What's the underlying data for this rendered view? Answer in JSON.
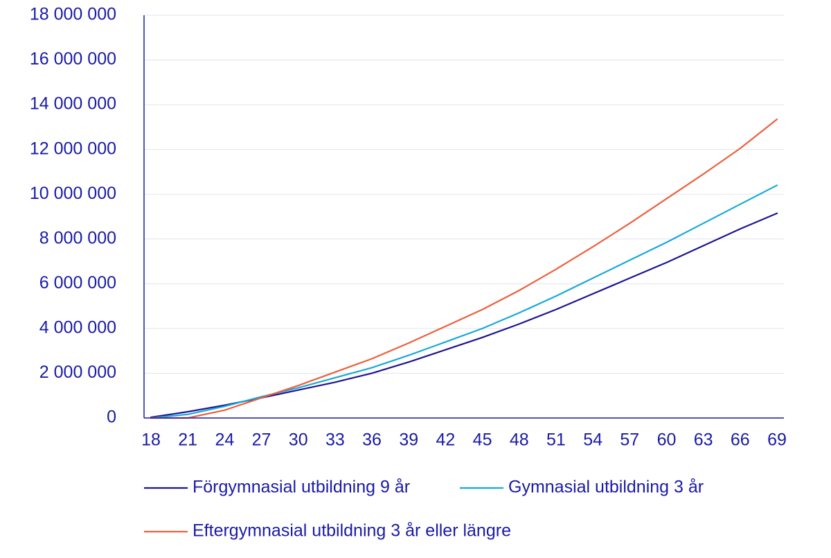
{
  "colors": {
    "axis": "#1a1aa6",
    "text": "#1a1aa6",
    "grid": "#e3e3ee"
  },
  "chart_data": {
    "type": "line",
    "title": "",
    "xlabel": "",
    "ylabel": "",
    "xlim": [
      18,
      69
    ],
    "ylim": [
      0,
      18000000
    ],
    "grid": true,
    "legend_position": "bottom",
    "x_ticks": [
      18,
      21,
      24,
      27,
      30,
      33,
      36,
      39,
      42,
      45,
      48,
      51,
      54,
      57,
      60,
      63,
      66,
      69
    ],
    "x_tick_labels": [
      "18",
      "21",
      "24",
      "27",
      "30",
      "33",
      "36",
      "39",
      "42",
      "45",
      "48",
      "51",
      "54",
      "57",
      "60",
      "63",
      "66",
      "69"
    ],
    "y_ticks": [
      0,
      2000000,
      4000000,
      6000000,
      8000000,
      10000000,
      12000000,
      14000000,
      16000000,
      18000000
    ],
    "y_tick_labels": [
      "0",
      "2 000 000",
      "4 000 000",
      "6 000 000",
      "8 000 000",
      "10 000 000",
      "12 000 000",
      "14 000 000",
      "16 000 000",
      "18 000 000"
    ],
    "x": [
      18,
      21,
      24,
      27,
      30,
      33,
      36,
      39,
      42,
      45,
      48,
      51,
      54,
      57,
      60,
      63,
      66,
      69
    ],
    "series": [
      {
        "name": "Förgymnasial utbildning 9 år",
        "color": "#1c1490",
        "values": [
          30000,
          280000,
          570000,
          900000,
          1250000,
          1600000,
          2000000,
          2500000,
          3050000,
          3600000,
          4200000,
          4850000,
          5550000,
          6250000,
          6950000,
          7700000,
          8450000,
          9150000
        ]
      },
      {
        "name": "Gymnasial utbildning 3 år",
        "color": "#17a9d9",
        "values": [
          0,
          160000,
          520000,
          950000,
          1350000,
          1800000,
          2250000,
          2800000,
          3400000,
          4000000,
          4700000,
          5450000,
          6250000,
          7050000,
          7850000,
          8700000,
          9550000,
          10400000
        ]
      },
      {
        "name": "Eftergymnasial utbildning 3 år eller längre",
        "color": "#ec5f3c",
        "values": [
          0,
          0,
          350000,
          900000,
          1450000,
          2050000,
          2650000,
          3350000,
          4100000,
          4850000,
          5700000,
          6650000,
          7650000,
          8700000,
          9800000,
          10900000,
          12050000,
          13350000
        ]
      }
    ]
  }
}
